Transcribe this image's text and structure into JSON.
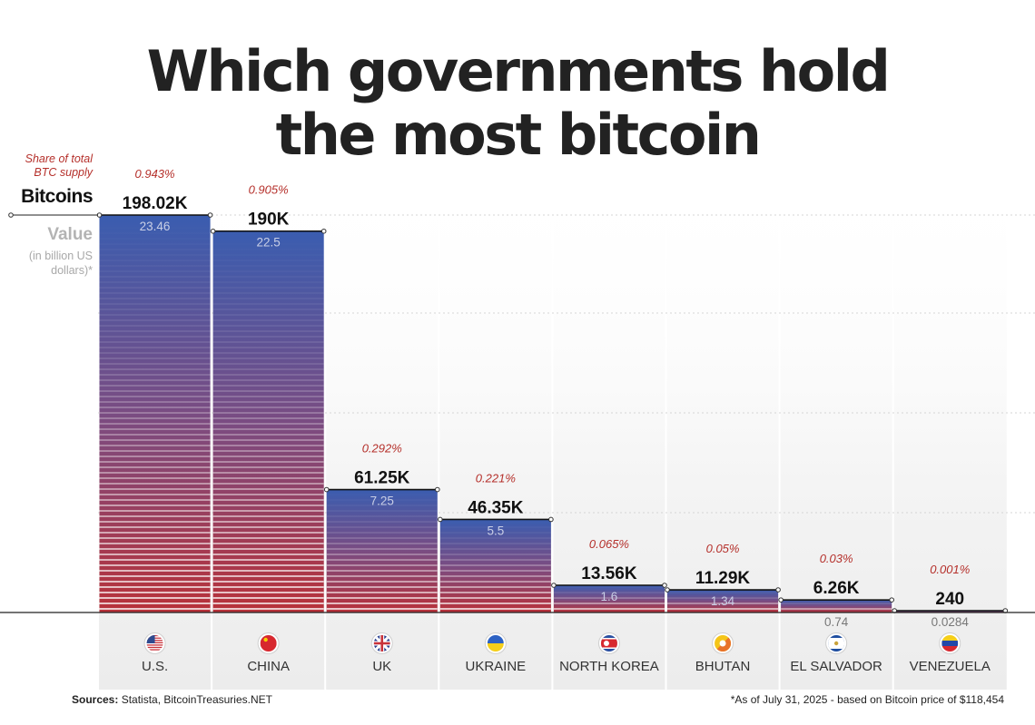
{
  "title": {
    "line1": "Which governments hold",
    "line2": "the most bitcoin"
  },
  "legend": {
    "share_label_1": "Share of total",
    "share_label_2": "BTC supply",
    "bitcoins_label": "Bitcoins",
    "value_label": "Value",
    "value_sub_1": "(in billion US",
    "value_sub_2": "dollars)*"
  },
  "colors": {
    "bar_top": "#3a5db0",
    "bar_bottom": "#b8323a",
    "share_text": "#b5302b",
    "value_text": "#c9cfe6",
    "value_text_outside": "#777777"
  },
  "chart_data": {
    "type": "bar",
    "title": "Which governments hold the most bitcoin",
    "xlabel": "",
    "ylabel": "Bitcoins",
    "ylim": [
      0,
      220000
    ],
    "grid": true,
    "categories": [
      "U.S.",
      "CHINA",
      "UK",
      "UKRAINE",
      "NORTH KOREA",
      "BHUTAN",
      "EL SALVADOR",
      "VENEZUELA"
    ],
    "flags": [
      "us-flag-icon",
      "china-flag-icon",
      "uk-flag-icon",
      "ukraine-flag-icon",
      "north-korea-flag-icon",
      "bhutan-flag-icon",
      "el-salvador-flag-icon",
      "venezuela-flag-icon"
    ],
    "values": [
      198020,
      190000,
      61250,
      46350,
      13560,
      11290,
      6260,
      240
    ],
    "value_labels": [
      "198.02K",
      "190K",
      "61.25K",
      "46.35K",
      "13.56K",
      "11.29K",
      "6.26K",
      "240"
    ],
    "usd_billions": [
      23.46,
      22.5,
      7.25,
      5.5,
      1.6,
      1.34,
      0.74,
      0.0284
    ],
    "usd_labels": [
      "23.46",
      "22.5",
      "7.25",
      "5.5",
      "1.6",
      "1.34",
      "0.74",
      "0.0284"
    ],
    "share_labels": [
      "0.943%",
      "0.905%",
      "0.292%",
      "0.221%",
      "0.065%",
      "0.05%",
      "0.03%",
      "0.001%"
    ]
  },
  "footer": {
    "sources_label": "Sources:",
    "sources_text": " Statista, BitcoinTreasuries.NET",
    "note": "*As of July 31, 2025 - based on Bitcoin price of $118,454"
  }
}
